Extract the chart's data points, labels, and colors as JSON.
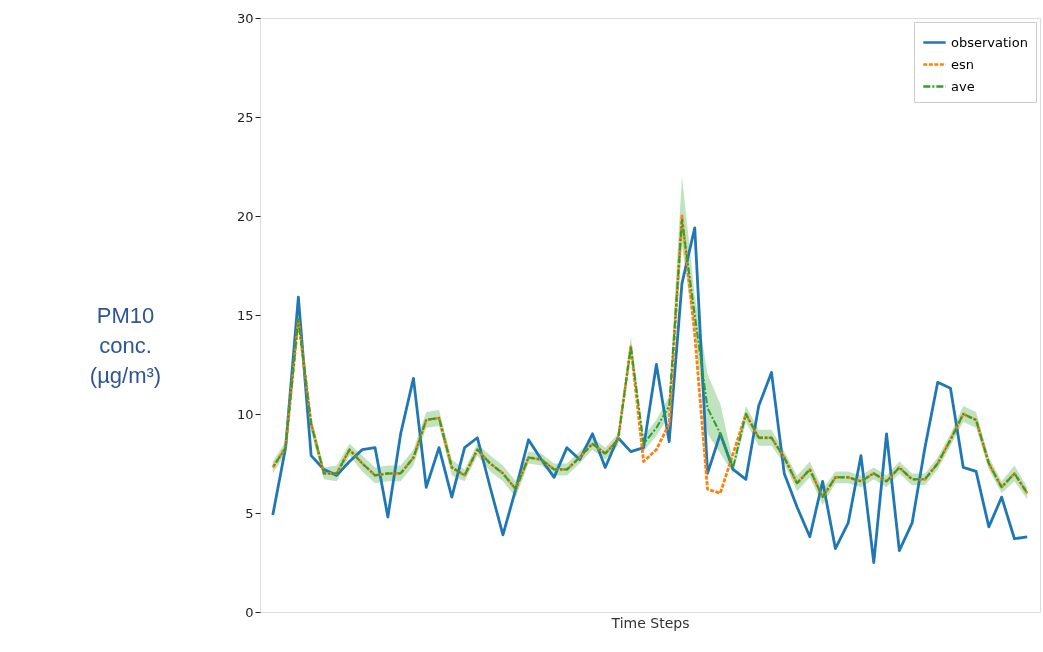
{
  "chart_data": {
    "type": "line",
    "xlabel": "Time Steps",
    "ylabel": "PM10\nconc.\n(µg/m³)",
    "categories": [
      null,
      null,
      null,
      null,
      null,
      null,
      null,
      null,
      null,
      null,
      null,
      null,
      null,
      null,
      null,
      null,
      null,
      null,
      null,
      null,
      null,
      null,
      null,
      null,
      null,
      null,
      null,
      null,
      null,
      null,
      null,
      null,
      null,
      null,
      null,
      null,
      null,
      null,
      null,
      null,
      null,
      null,
      null,
      null,
      null,
      null,
      null,
      null,
      null,
      null,
      null,
      null,
      null,
      null,
      null,
      null,
      null,
      null,
      null,
      null
    ],
    "ylim": [
      0,
      30
    ],
    "yticks": [
      0,
      5,
      10,
      15,
      20,
      25,
      30
    ],
    "tick_labels": "y",
    "grid": false,
    "legend": "top right",
    "series": [
      {
        "name": "observation",
        "color": "#1f77b4",
        "line_style": "solid",
        "values": [
          4.9,
          8.3,
          15.9,
          7.9,
          7.2,
          6.9,
          7.6,
          8.2,
          8.3,
          4.8,
          9.0,
          11.8,
          6.3,
          8.3,
          5.8,
          8.3,
          8.8,
          6.3,
          3.9,
          6.2,
          8.7,
          7.7,
          6.8,
          8.3,
          7.7,
          9.0,
          7.3,
          8.8,
          8.1,
          8.3,
          12.5,
          8.6,
          16.6,
          19.4,
          7.0,
          9.0,
          7.2,
          6.7,
          10.4,
          12.1,
          7.0,
          5.3,
          3.8,
          6.6,
          3.2,
          4.5,
          7.9,
          2.5,
          9.0,
          3.1,
          4.5,
          8.3,
          11.6,
          11.3,
          7.3,
          7.1,
          4.3,
          5.8,
          3.7,
          3.8
        ]
      },
      {
        "name": "esn",
        "color": "#ff7f0e",
        "line_style": "dashed",
        "values": [
          7.3,
          8.3,
          14.8,
          9.5,
          7.0,
          7.0,
          8.2,
          7.5,
          6.9,
          7.0,
          7.0,
          7.8,
          9.7,
          9.8,
          7.3,
          6.9,
          8.2,
          7.5,
          7.0,
          6.2,
          7.8,
          7.7,
          7.2,
          7.2,
          7.8,
          8.5,
          8.0,
          8.7,
          13.4,
          7.6,
          8.2,
          9.5,
          20.0,
          14.0,
          6.2,
          6.0,
          8.0,
          10.0,
          8.8,
          8.8,
          7.8,
          6.5,
          7.2,
          5.8,
          6.8,
          6.8,
          6.6,
          7.0,
          6.6,
          7.3,
          6.7,
          6.7,
          7.5,
          8.7,
          10.0,
          9.7,
          7.5,
          6.3,
          7.0,
          6.0
        ]
      },
      {
        "name": "ave",
        "color": "#2ca02c",
        "line_style": "dashdot",
        "values": [
          7.3,
          8.3,
          14.8,
          9.5,
          7.0,
          7.0,
          8.2,
          7.5,
          6.9,
          7.0,
          7.0,
          7.8,
          9.7,
          9.8,
          7.3,
          6.9,
          8.2,
          7.5,
          7.0,
          6.2,
          7.8,
          7.7,
          7.2,
          7.2,
          7.8,
          8.5,
          8.0,
          8.7,
          13.4,
          8.5,
          9.3,
          10.4,
          19.8,
          15.0,
          10.3,
          9.0,
          7.3,
          10.0,
          8.8,
          8.8,
          7.8,
          6.5,
          7.2,
          5.8,
          6.8,
          6.8,
          6.6,
          7.0,
          6.6,
          7.3,
          6.7,
          6.7,
          7.5,
          8.7,
          10.0,
          9.7,
          7.5,
          6.3,
          7.0,
          6.0
        ],
        "lower": [
          7.0,
          8.0,
          14.3,
          9.1,
          6.7,
          6.6,
          7.9,
          7.1,
          6.5,
          6.6,
          6.6,
          7.4,
          9.3,
          9.4,
          6.9,
          6.6,
          7.9,
          7.1,
          6.6,
          5.8,
          7.5,
          7.4,
          6.9,
          6.9,
          7.5,
          8.2,
          7.7,
          8.4,
          12.9,
          8.1,
          8.9,
          9.9,
          18.5,
          14.0,
          9.0,
          8.0,
          7.0,
          9.6,
          8.4,
          8.4,
          7.5,
          6.1,
          6.8,
          5.4,
          6.5,
          6.5,
          6.3,
          6.7,
          6.3,
          7.0,
          6.4,
          6.4,
          7.2,
          8.4,
          9.6,
          9.3,
          7.2,
          6.0,
          6.6,
          5.7
        ],
        "upper": [
          7.6,
          8.6,
          15.3,
          9.9,
          7.3,
          7.4,
          8.5,
          7.9,
          7.3,
          7.4,
          7.4,
          8.2,
          10.1,
          10.2,
          7.7,
          7.2,
          8.5,
          7.9,
          7.4,
          6.6,
          8.1,
          8.0,
          7.5,
          7.5,
          8.1,
          8.8,
          8.3,
          9.0,
          13.9,
          8.9,
          9.7,
          10.9,
          22.0,
          16.0,
          12.0,
          10.5,
          7.6,
          10.4,
          9.2,
          9.2,
          8.1,
          6.9,
          7.6,
          6.2,
          7.1,
          7.1,
          6.9,
          7.3,
          6.9,
          7.6,
          7.0,
          7.0,
          7.8,
          9.0,
          10.4,
          10.1,
          7.8,
          6.6,
          7.4,
          6.3
        ]
      }
    ]
  }
}
